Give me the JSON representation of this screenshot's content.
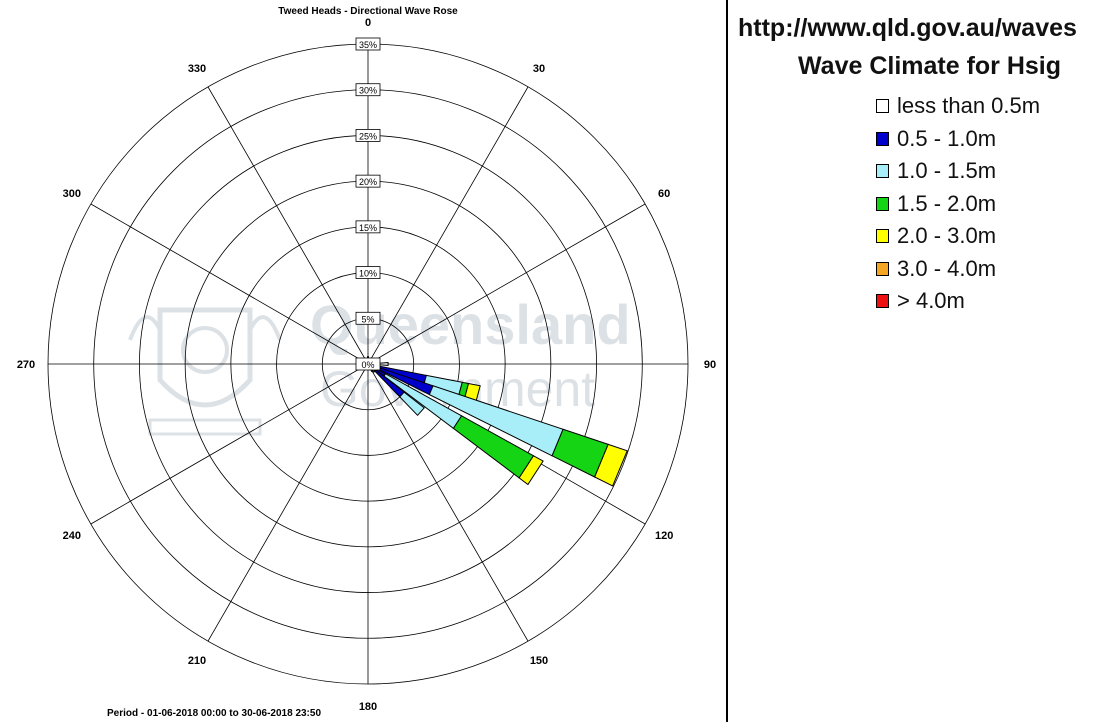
{
  "legend": {
    "url": "http://www.qld.gov.au/waves",
    "title": "Wave Climate for Hsig",
    "items": [
      {
        "label": "less than 0.5m",
        "color": "#ffffff"
      },
      {
        "label": "0.5 - 1.0m",
        "color": "#0000cc"
      },
      {
        "label": "1.0 - 1.5m",
        "color": "#a8eef8"
      },
      {
        "label": "1.5 - 2.0m",
        "color": "#14d414"
      },
      {
        "label": "2.0 - 3.0m",
        "color": "#ffff00"
      },
      {
        "label": "3.0 - 4.0m",
        "color": "#f5a623"
      },
      {
        "label": "> 4.0m",
        "color": "#ee1111"
      }
    ]
  },
  "watermark": {
    "line1": "Queensland",
    "line2": "Government"
  },
  "chart_data": {
    "type": "polar-bar",
    "title": "Tweed Heads - Directional Wave Rose",
    "footer": "Period - 01-06-2018  00:00 to 30-06-2018  23:50",
    "direction_labels": [
      "0",
      "30",
      "60",
      "90",
      "120",
      "150",
      "180",
      "210",
      "240",
      "270",
      "300",
      "330"
    ],
    "radial_labels": [
      "0%",
      "5%",
      "10%",
      "15%",
      "20%",
      "25%",
      "30%",
      "35%"
    ],
    "radial_max": 35,
    "grid": true,
    "bin_width_deg": 8,
    "bins": [
      {
        "direction": 0,
        "segments": [
          0.8
        ]
      },
      {
        "direction": 30,
        "segments": [
          0.6
        ]
      },
      {
        "direction": 60,
        "segments": [
          0.6
        ]
      },
      {
        "direction": 90,
        "segments": [
          2.2
        ]
      },
      {
        "direction": 105,
        "segments": [
          1.0,
          5.5,
          4.0,
          0.7,
          1.3
        ]
      },
      {
        "direction": 112.5,
        "segments": [
          1.0,
          6.5,
          15.0,
          5.2,
          2.2
        ]
      },
      {
        "direction": 123,
        "segments": [
          1.0,
          1.2,
          9.5,
          9.0,
          1.2
        ]
      },
      {
        "direction": 132,
        "segments": [
          1.0,
          4.0,
          2.8
        ]
      },
      {
        "direction": 140,
        "segments": [
          1.1
        ]
      },
      {
        "direction": 150,
        "segments": [
          0.9
        ]
      },
      {
        "direction": 165,
        "segments": [
          0.6
        ]
      }
    ]
  }
}
